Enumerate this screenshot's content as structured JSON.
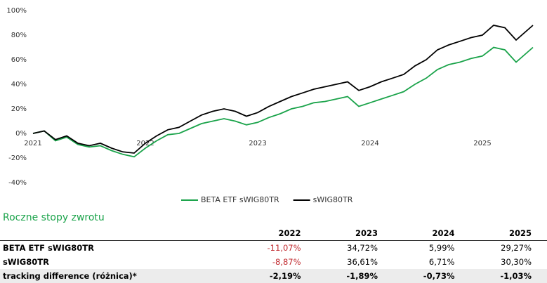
{
  "chart_data": {
    "type": "line",
    "x": [
      2021.0,
      2021.1,
      2021.2,
      2021.3,
      2021.4,
      2021.5,
      2021.6,
      2021.7,
      2021.8,
      2021.9,
      2022.0,
      2022.1,
      2022.2,
      2022.3,
      2022.4,
      2022.5,
      2022.6,
      2022.7,
      2022.8,
      2022.9,
      2023.0,
      2023.1,
      2023.2,
      2023.3,
      2023.4,
      2023.5,
      2023.6,
      2023.7,
      2023.8,
      2023.9,
      2024.0,
      2024.1,
      2024.2,
      2024.3,
      2024.4,
      2024.5,
      2024.6,
      2024.7,
      2024.8,
      2024.9,
      2025.0,
      2025.1,
      2025.2,
      2025.3,
      2025.4,
      2025.45
    ],
    "series": [
      {
        "name": "BETA ETF sWIG80TR",
        "color": "#1aa34a",
        "values": [
          0,
          2,
          -6,
          -3,
          -9,
          -11,
          -10,
          -14,
          -17,
          -19,
          -12,
          -6,
          -1,
          0,
          4,
          8,
          10,
          12,
          10,
          7,
          9,
          13,
          16,
          20,
          22,
          25,
          26,
          28,
          30,
          22,
          25,
          28,
          31,
          34,
          40,
          45,
          52,
          56,
          58,
          61,
          63,
          70,
          68,
          58,
          66,
          70
        ]
      },
      {
        "name": "sWIG80TR",
        "color": "#000000",
        "values": [
          0,
          2,
          -5,
          -2,
          -8,
          -10,
          -8,
          -12,
          -15,
          -16,
          -8,
          -2,
          3,
          5,
          10,
          15,
          18,
          20,
          18,
          14,
          17,
          22,
          26,
          30,
          33,
          36,
          38,
          40,
          42,
          35,
          38,
          42,
          45,
          48,
          55,
          60,
          68,
          72,
          75,
          78,
          80,
          88,
          86,
          76,
          84,
          88
        ]
      }
    ],
    "xlim": [
      2021,
      2025.5
    ],
    "xticks": [
      2021,
      2022,
      2023,
      2024,
      2025
    ],
    "ylim": [
      -40,
      100
    ],
    "yticks": [
      {
        "value": -40,
        "label": "-40%"
      },
      {
        "value": -20,
        "label": "-20%"
      },
      {
        "value": 0,
        "label": "0%"
      },
      {
        "value": 20,
        "label": "20%"
      },
      {
        "value": 40,
        "label": "40%"
      },
      {
        "value": 60,
        "label": "60%"
      },
      {
        "value": 80,
        "label": "80%"
      },
      {
        "value": 100,
        "label": "100%"
      }
    ],
    "grid": false
  },
  "section_title": "Roczne stopy zwrotu",
  "table": {
    "header": [
      "2022",
      "2023",
      "2024",
      "2025"
    ],
    "rows": [
      {
        "label": "BETA ETF sWIG80TR",
        "values": [
          "-11,07%",
          "34,72%",
          "5,99%",
          "29,27%"
        ]
      },
      {
        "label": "sWIG80TR",
        "values": [
          "-8,87%",
          "36,61%",
          "6,71%",
          "30,30%"
        ]
      },
      {
        "label": "tracking difference (różnica)*",
        "values": [
          "-2,19%",
          "-1,89%",
          "-0,73%",
          "-1,03%"
        ]
      }
    ]
  }
}
